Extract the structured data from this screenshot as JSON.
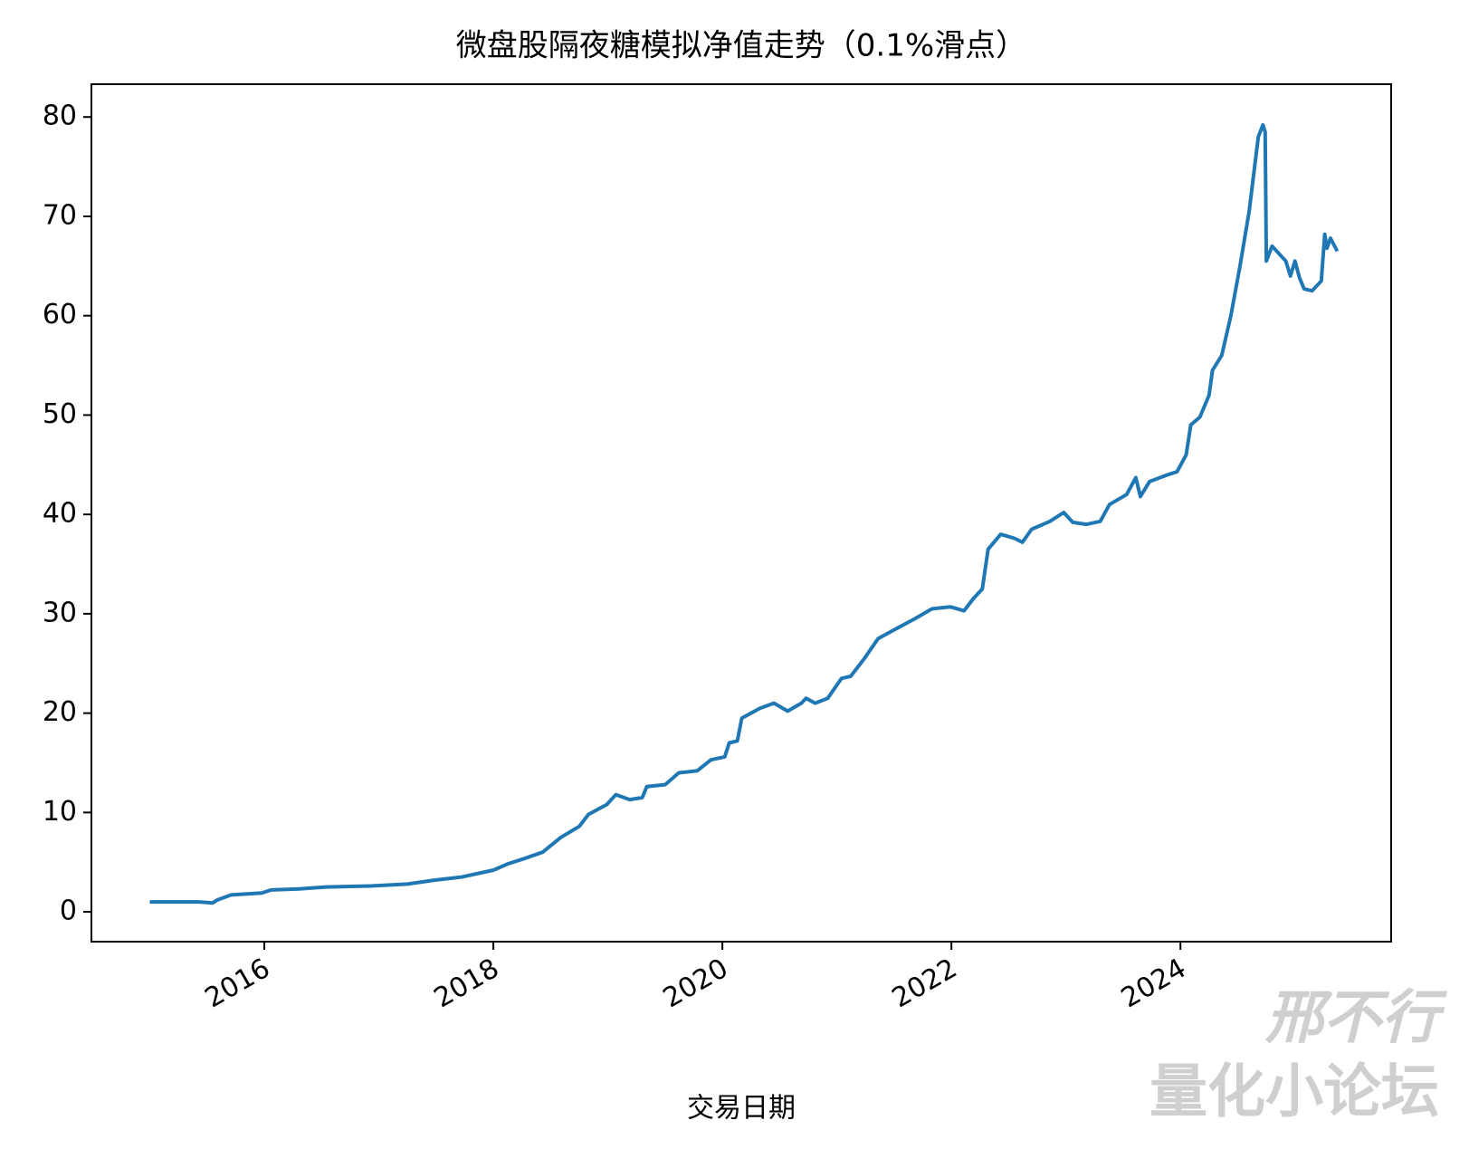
{
  "chart_data": {
    "type": "line",
    "title": "微盘股隔夜糖模拟净值走势（0.1%滑点）",
    "xlabel": "交易日期",
    "watermark": [
      "邢不行",
      "量化小论坛"
    ],
    "x": [
      2015.0,
      2015.43,
      2015.55,
      2015.59,
      2015.71,
      2015.98,
      2016.06,
      2016.3,
      2016.54,
      2016.93,
      2017.25,
      2017.49,
      2017.72,
      2018.0,
      2018.12,
      2018.28,
      2018.43,
      2018.59,
      2018.75,
      2018.83,
      2018.99,
      2019.07,
      2019.19,
      2019.3,
      2019.34,
      2019.5,
      2019.62,
      2019.78,
      2019.9,
      2020.02,
      2020.06,
      2020.13,
      2020.17,
      2020.33,
      2020.45,
      2020.57,
      2020.69,
      2020.73,
      2020.81,
      2020.92,
      2021.04,
      2021.12,
      2021.24,
      2021.36,
      2021.52,
      2021.68,
      2021.83,
      2021.99,
      2022.11,
      2022.19,
      2022.27,
      2022.32,
      2022.43,
      2022.55,
      2022.62,
      2022.7,
      2022.86,
      2022.98,
      2023.06,
      2023.18,
      2023.3,
      2023.38,
      2023.53,
      2023.61,
      2023.65,
      2023.73,
      2023.89,
      2023.97,
      2024.05,
      2024.09,
      2024.17,
      2024.25,
      2024.28,
      2024.36,
      2024.44,
      2024.52,
      2024.6,
      2024.68,
      2024.72,
      2024.74,
      2024.75,
      2024.8,
      2024.88,
      2024.92,
      2024.96,
      2025.0,
      2025.04,
      2025.08,
      2025.15,
      2025.23,
      2025.26,
      2025.28,
      2025.31,
      2025.37
    ],
    "series": [
      {
        "color": "#1f77b4",
        "values": [
          1.0,
          1.0,
          0.9,
          1.2,
          1.7,
          1.9,
          2.2,
          2.3,
          2.5,
          2.6,
          2.8,
          3.2,
          3.5,
          4.2,
          4.8,
          5.4,
          6.0,
          7.5,
          8.6,
          9.8,
          10.8,
          11.8,
          11.3,
          11.5,
          12.6,
          12.8,
          14.0,
          14.2,
          15.3,
          15.6,
          17.0,
          17.2,
          19.5,
          20.5,
          21.0,
          20.2,
          21.0,
          21.5,
          21.0,
          21.5,
          23.5,
          23.7,
          25.5,
          27.5,
          28.5,
          29.5,
          30.5,
          30.7,
          30.3,
          31.5,
          32.5,
          36.5,
          38.0,
          37.6,
          37.2,
          38.5,
          39.3,
          40.2,
          39.2,
          39.0,
          39.3,
          41.0,
          42.0,
          43.7,
          41.8,
          43.3,
          44.0,
          44.3,
          46.0,
          49.0,
          49.8,
          52.0,
          54.5,
          56.0,
          60.0,
          65.0,
          70.5,
          78.0,
          79.2,
          78.5,
          65.5,
          67.0,
          66.0,
          65.5,
          64.0,
          65.5,
          63.8,
          62.7,
          62.5,
          63.5,
          68.2,
          66.8,
          67.8,
          66.5
        ]
      }
    ],
    "xlim": [
      2014.49,
      2025.84
    ],
    "xticks": [
      2016,
      2018,
      2020,
      2022,
      2024
    ],
    "ylim": [
      -3.0,
      83.3
    ],
    "yticks": [
      0,
      10,
      20,
      30,
      40,
      50,
      60,
      70,
      80
    ]
  }
}
